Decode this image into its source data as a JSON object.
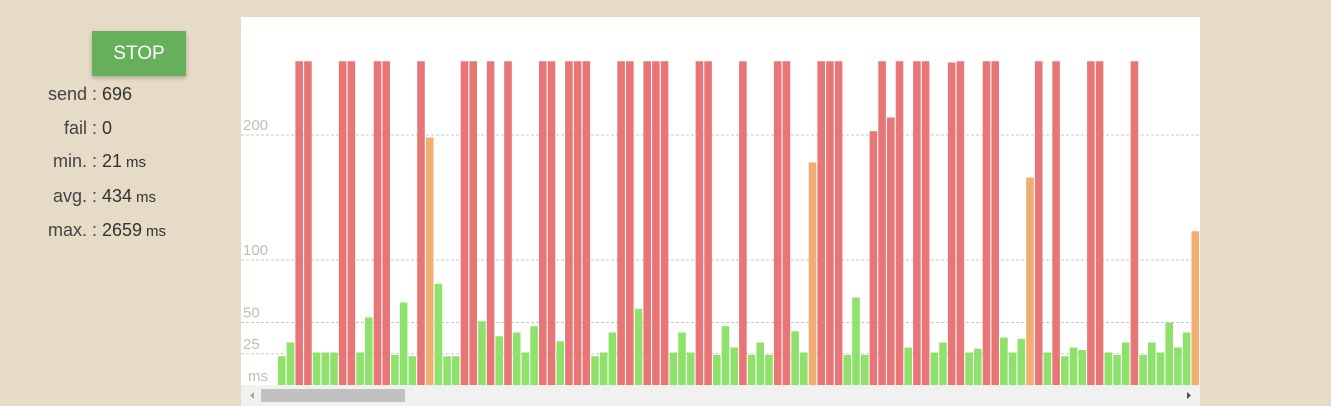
{
  "controls": {
    "button": "STOP"
  },
  "stats": [
    {
      "label": "send :",
      "value": 696
    },
    {
      "label": "fail :",
      "value": 0
    },
    {
      "label": "min. :",
      "value": 21,
      "unit": "ms"
    },
    {
      "label": "avg. :",
      "value": 434,
      "unit": "ms"
    },
    {
      "label": "max. :",
      "value": 2659,
      "unit": "ms"
    }
  ],
  "chart_data": {
    "type": "bar",
    "y_unit": "ms",
    "ylim": [
      0,
      294.4
    ],
    "yticks": [
      25,
      50,
      100,
      200
    ],
    "grid": true,
    "values": [
      23,
      34,
      259,
      259,
      26,
      26,
      26,
      259,
      259,
      26,
      54,
      259,
      259,
      24,
      66,
      23,
      259,
      198,
      81,
      23,
      23,
      259,
      259,
      51,
      259,
      39,
      259,
      42,
      26,
      47,
      259,
      259,
      35,
      259,
      259,
      259,
      23,
      26,
      42,
      259,
      259,
      61,
      259,
      259,
      259,
      26,
      42,
      26,
      259,
      259,
      24,
      47,
      30,
      259,
      24,
      34,
      24,
      259,
      259,
      43,
      26,
      178,
      259,
      259,
      259,
      24,
      70,
      24,
      203,
      259,
      214,
      259,
      30,
      259,
      259,
      26,
      34,
      258,
      259,
      26,
      29,
      259,
      259,
      38,
      26,
      37,
      166,
      259,
      26,
      259,
      23,
      30,
      28,
      259,
      259,
      26,
      24,
      34,
      259,
      24,
      34,
      26,
      50,
      30,
      42,
      123
    ],
    "colors": [
      "#8ee26b",
      "#8ee26b",
      "#e97676",
      "#e97676",
      "#8ee26b",
      "#8ee26b",
      "#8ee26b",
      "#e97676",
      "#e97676",
      "#8ee26b",
      "#8ee26b",
      "#e97676",
      "#e97676",
      "#8ee26b",
      "#8ee26b",
      "#8ee26b",
      "#e97676",
      "#f1ae70",
      "#8ee26b",
      "#8ee26b",
      "#8ee26b",
      "#e97676",
      "#e97676",
      "#8ee26b",
      "#e97676",
      "#8ee26b",
      "#e97676",
      "#8ee26b",
      "#8ee26b",
      "#8ee26b",
      "#e97676",
      "#e97676",
      "#8ee26b",
      "#e97676",
      "#e97676",
      "#e97676",
      "#8ee26b",
      "#8ee26b",
      "#8ee26b",
      "#e97676",
      "#e97676",
      "#8ee26b",
      "#e97676",
      "#e97676",
      "#e97676",
      "#8ee26b",
      "#8ee26b",
      "#8ee26b",
      "#e97676",
      "#e97676",
      "#8ee26b",
      "#8ee26b",
      "#8ee26b",
      "#e97676",
      "#8ee26b",
      "#8ee26b",
      "#8ee26b",
      "#e97676",
      "#e97676",
      "#8ee26b",
      "#8ee26b",
      "#f1ae70",
      "#e97676",
      "#e97676",
      "#e97676",
      "#8ee26b",
      "#8ee26b",
      "#8ee26b",
      "#e97676",
      "#e97676",
      "#e97676",
      "#e97676",
      "#8ee26b",
      "#e97676",
      "#e97676",
      "#8ee26b",
      "#8ee26b",
      "#e97676",
      "#e97676",
      "#8ee26b",
      "#8ee26b",
      "#e97676",
      "#e97676",
      "#8ee26b",
      "#8ee26b",
      "#8ee26b",
      "#f1ae70",
      "#e97676",
      "#8ee26b",
      "#e97676",
      "#8ee26b",
      "#8ee26b",
      "#8ee26b",
      "#e97676",
      "#e97676",
      "#8ee26b",
      "#8ee26b",
      "#8ee26b",
      "#e97676",
      "#8ee26b",
      "#8ee26b",
      "#8ee26b",
      "#8ee26b",
      "#8ee26b",
      "#8ee26b",
      "#f1ae70"
    ]
  }
}
